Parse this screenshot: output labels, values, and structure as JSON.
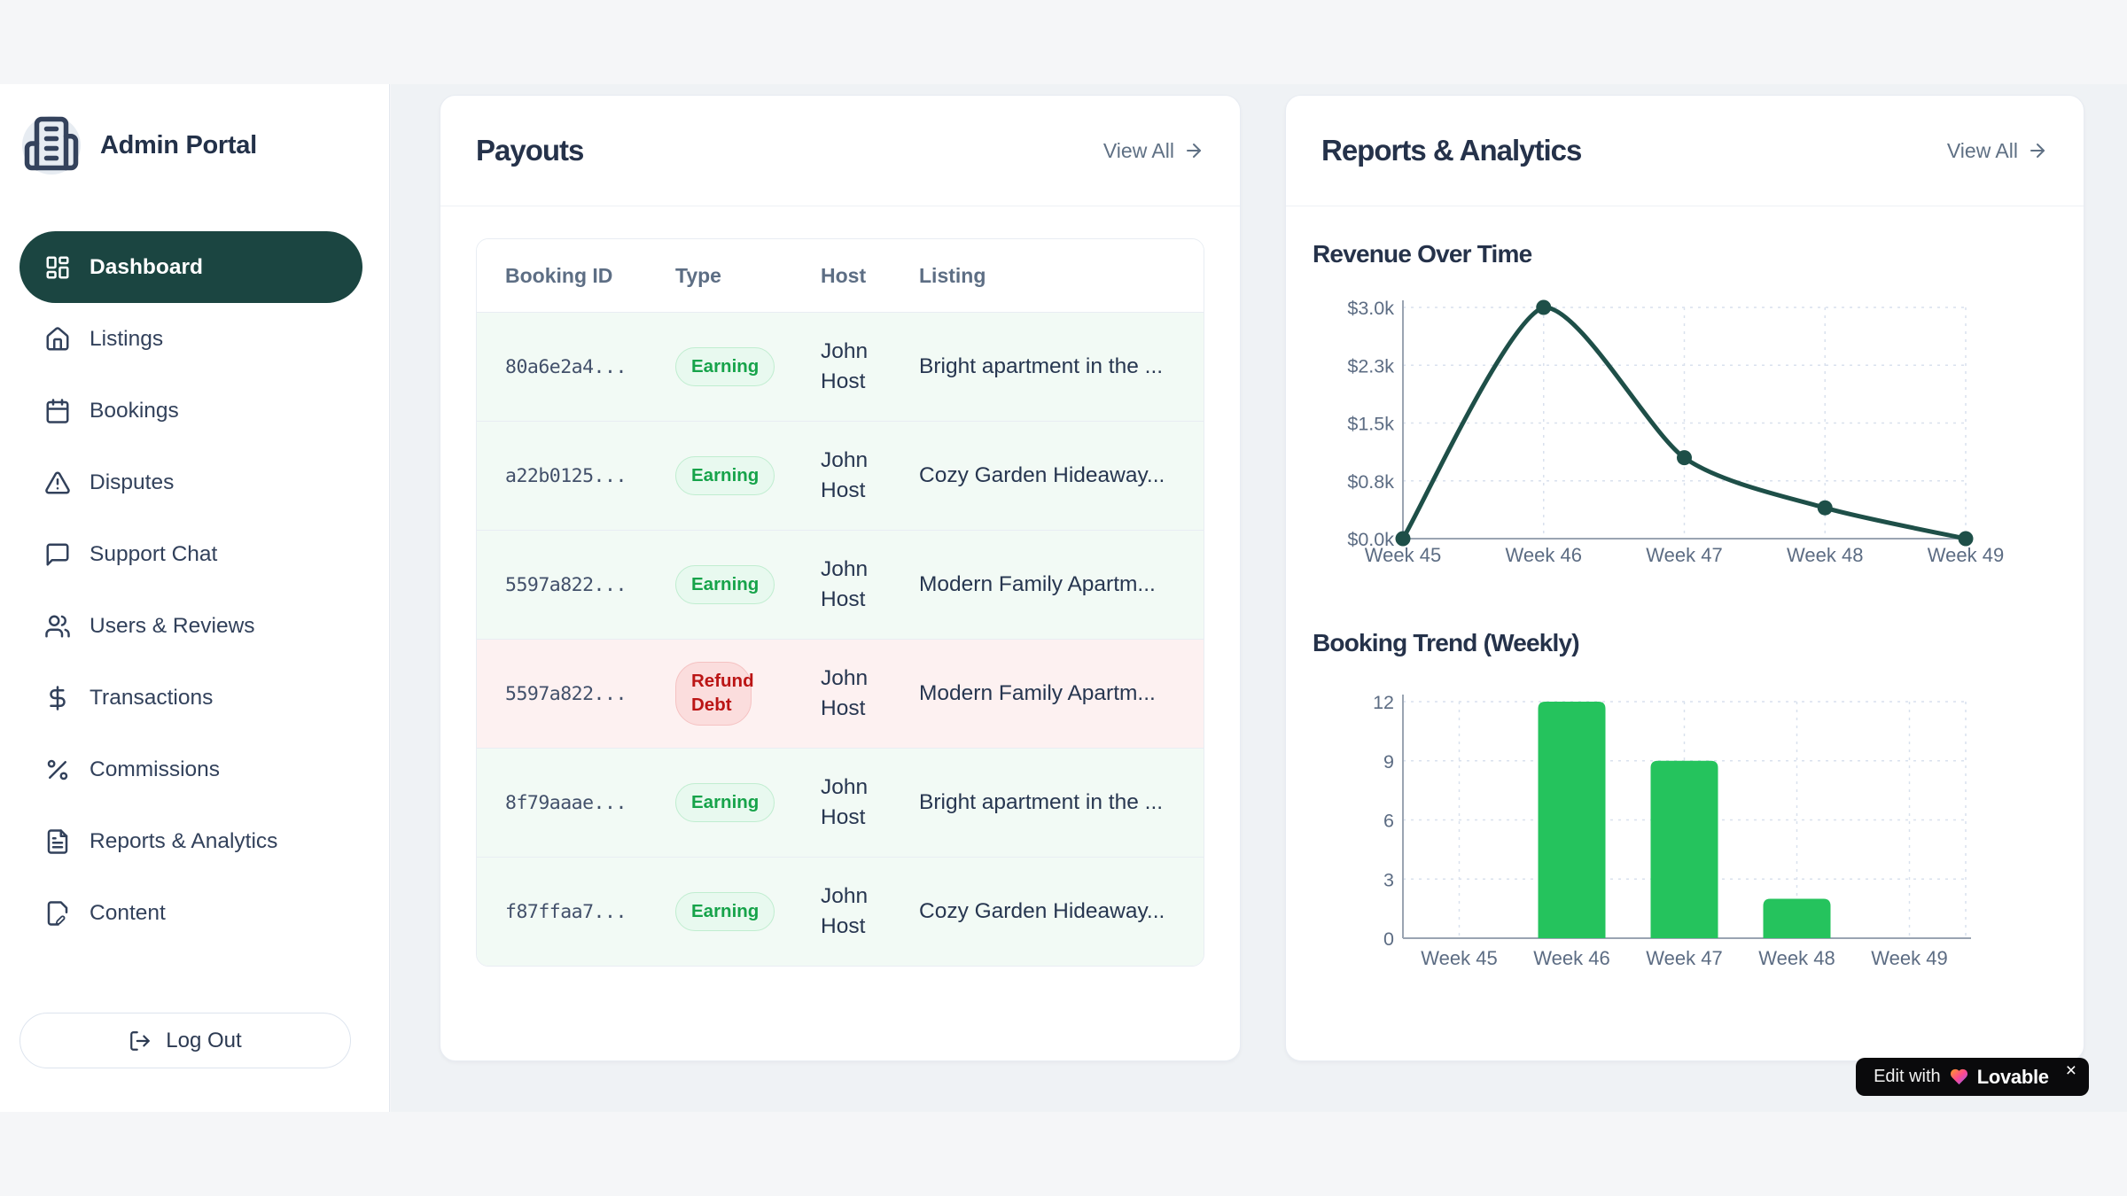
{
  "brand": {
    "title": "Admin Portal"
  },
  "sidebar": {
    "items": [
      {
        "label": "Dashboard",
        "icon": "dashboard",
        "active": true
      },
      {
        "label": "Listings",
        "icon": "home",
        "active": false
      },
      {
        "label": "Bookings",
        "icon": "calendar",
        "active": false
      },
      {
        "label": "Disputes",
        "icon": "alert-triangle",
        "active": false
      },
      {
        "label": "Support Chat",
        "icon": "message",
        "active": false
      },
      {
        "label": "Users & Reviews",
        "icon": "users",
        "active": false
      },
      {
        "label": "Transactions",
        "icon": "dollar",
        "active": false
      },
      {
        "label": "Commissions",
        "icon": "percent",
        "active": false
      },
      {
        "label": "Reports & Analytics",
        "icon": "file-text",
        "active": false
      },
      {
        "label": "Content",
        "icon": "file-pen",
        "active": false
      }
    ],
    "logout_label": "Log Out"
  },
  "payouts": {
    "title": "Payouts",
    "view_all": "View All",
    "columns": [
      "Booking ID",
      "Type",
      "Host",
      "Listing"
    ],
    "rows": [
      {
        "booking_id": "80a6e2a4...",
        "type": "Earning",
        "status": "earning",
        "host": "John Host",
        "listing": "Bright apartment in the ..."
      },
      {
        "booking_id": "a22b0125...",
        "type": "Earning",
        "status": "earning",
        "host": "John Host",
        "listing": "Cozy Garden Hideaway..."
      },
      {
        "booking_id": "5597a822...",
        "type": "Earning",
        "status": "earning",
        "host": "John Host",
        "listing": "Modern Family Apartm..."
      },
      {
        "booking_id": "5597a822...",
        "type": "Refund Debt",
        "status": "refund",
        "host": "John Host",
        "listing": "Modern Family Apartm..."
      },
      {
        "booking_id": "8f79aaae...",
        "type": "Earning",
        "status": "earning",
        "host": "John Host",
        "listing": "Bright apartment in the ..."
      },
      {
        "booking_id": "f87ffaa7...",
        "type": "Earning",
        "status": "earning",
        "host": "John Host",
        "listing": "Cozy Garden Hideaway..."
      }
    ]
  },
  "reports": {
    "title": "Reports & Analytics",
    "view_all": "View All"
  },
  "chart_data": [
    {
      "type": "line",
      "title": "Revenue Over Time",
      "categories": [
        "Week 45",
        "Week 46",
        "Week 47",
        "Week 48",
        "Week 49"
      ],
      "values": [
        0,
        3000,
        1050,
        400,
        0
      ],
      "xlabel": "",
      "ylabel": "",
      "ylim": [
        0,
        3000
      ],
      "yticks": [
        0,
        750,
        1500,
        2250,
        3000
      ],
      "ytick_labels": [
        "$0.0k",
        "$0.8k",
        "$1.5k",
        "$2.3k",
        "$3.0k"
      ],
      "grid": "dashed",
      "legend": false,
      "line_color": "#1e4f48"
    },
    {
      "type": "bar",
      "title": "Booking Trend (Weekly)",
      "categories": [
        "Week 45",
        "Week 46",
        "Week 47",
        "Week 48",
        "Week 49"
      ],
      "values": [
        0,
        12,
        9,
        2,
        0
      ],
      "xlabel": "",
      "ylabel": "",
      "ylim": [
        0,
        12
      ],
      "yticks": [
        0,
        3,
        6,
        9,
        12
      ],
      "ytick_labels": [
        "0",
        "3",
        "6",
        "9",
        "12"
      ],
      "grid": "dashed",
      "legend": false,
      "bar_color": "#25c35d"
    }
  ],
  "lovable": {
    "prefix": "Edit with",
    "brand": "Lovable",
    "close": "×"
  },
  "colors": {
    "active_pill": "#1b4541",
    "line_teal": "#1e4f48",
    "bar_green": "#25c35d",
    "earning_text": "#16a34a",
    "refund_text": "#bb1515",
    "grid_dash": "#d9e1ee",
    "axis": "#9aa4b2",
    "tick_text": "#5c6c83"
  }
}
